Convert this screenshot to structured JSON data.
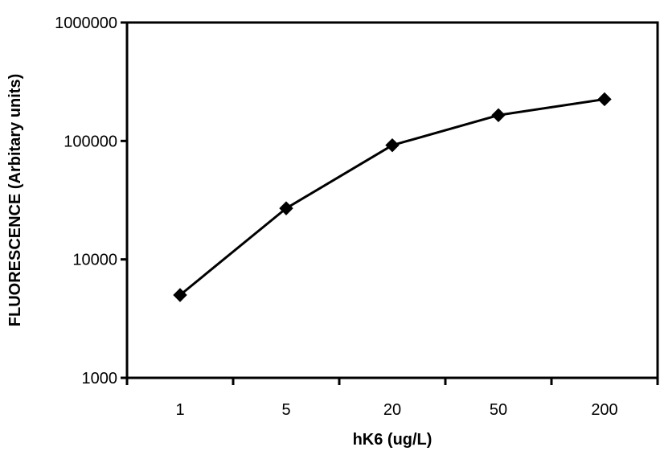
{
  "chart_data": {
    "type": "line",
    "xlabel": "hK6 (ug/L)",
    "ylabel": "FLUORESCENCE (Arbitary units)",
    "x_scale": "category",
    "y_scale": "log",
    "ylim": [
      1000,
      1000000
    ],
    "yticks": [
      1000,
      10000,
      100000,
      1000000
    ],
    "ytick_labels": [
      "1000",
      "10000",
      "100000",
      "1000000"
    ],
    "categories": [
      "1",
      "5",
      "20",
      "50",
      "200"
    ],
    "series": [
      {
        "values": [
          5000,
          27000,
          92000,
          165000,
          225000
        ],
        "marker": "diamond",
        "color": "#000000"
      }
    ],
    "grid": false,
    "legend": "none"
  }
}
